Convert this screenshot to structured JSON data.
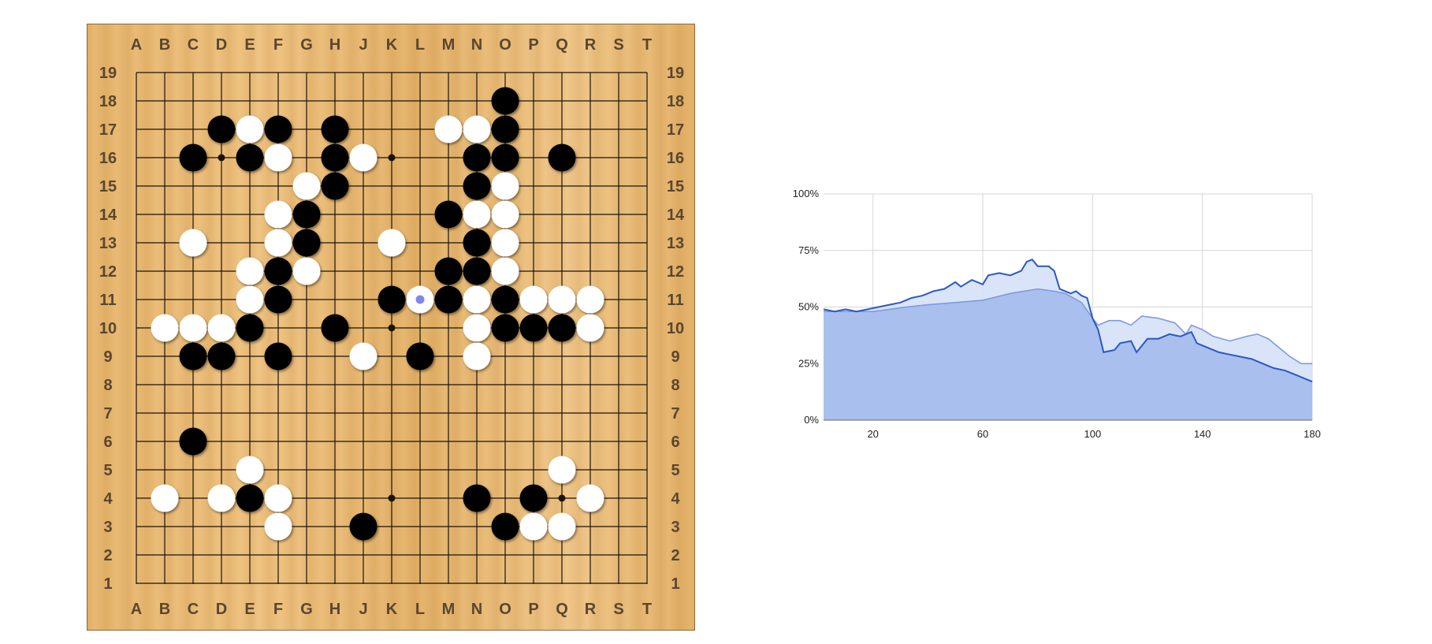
{
  "board": {
    "size": 19,
    "column_labels": [
      "A",
      "B",
      "C",
      "D",
      "E",
      "F",
      "G",
      "H",
      "J",
      "K",
      "L",
      "M",
      "N",
      "O",
      "P",
      "Q",
      "R",
      "S",
      "T"
    ],
    "row_labels": [
      "19",
      "18",
      "17",
      "16",
      "15",
      "14",
      "13",
      "12",
      "11",
      "10",
      "9",
      "8",
      "7",
      "6",
      "5",
      "4",
      "3",
      "2",
      "1"
    ],
    "hoshi": [
      "D16",
      "K16",
      "Q16",
      "D10",
      "K10",
      "Q10",
      "D4",
      "K4",
      "Q4"
    ],
    "black_stones": [
      "O18",
      "D17",
      "F17",
      "H17",
      "O17",
      "C16",
      "E16",
      "H16",
      "N16",
      "O16",
      "Q16",
      "H15",
      "N15",
      "G14",
      "M14",
      "G13",
      "N13",
      "F12",
      "M12",
      "N12",
      "F11",
      "K11",
      "M11",
      "O11",
      "E10",
      "H10",
      "O10",
      "P10",
      "Q10",
      "C9",
      "D9",
      "F9",
      "L9",
      "C6",
      "E4",
      "N4",
      "P4",
      "J3",
      "O3"
    ],
    "white_stones": [
      "E17",
      "M17",
      "N17",
      "F16",
      "J16",
      "G15",
      "O15",
      "F14",
      "N14",
      "O14",
      "C13",
      "F13",
      "K13",
      "O13",
      "E12",
      "G12",
      "O12",
      "E11",
      "N11",
      "P11",
      "Q11",
      "R11",
      "B10",
      "C10",
      "D10",
      "N10",
      "R10",
      "J9",
      "N9",
      "E5",
      "Q5",
      "B4",
      "D4",
      "F4",
      "R4",
      "F3",
      "P3",
      "Q3"
    ],
    "last_move": "L11",
    "colors": {
      "grid": "#1b140c",
      "label": "#5a4630",
      "black": "#050505",
      "white": "#ffffff",
      "last_move_marker": "#7f86ee"
    }
  },
  "chart_data": {
    "type": "area",
    "title": "",
    "xlabel": "",
    "ylabel": "",
    "x_ticks": [
      20,
      60,
      100,
      140,
      180
    ],
    "y_ticks": [
      "0%",
      "25%",
      "50%",
      "75%",
      "100%"
    ],
    "xlim": [
      2,
      180
    ],
    "ylim": [
      0,
      100
    ],
    "grid": true,
    "series": [
      {
        "color": "#2b57c8",
        "points": [
          [
            2,
            49
          ],
          [
            6,
            48
          ],
          [
            10,
            49
          ],
          [
            14,
            48
          ],
          [
            18,
            49
          ],
          [
            22,
            50
          ],
          [
            26,
            51
          ],
          [
            30,
            52
          ],
          [
            34,
            54
          ],
          [
            38,
            55
          ],
          [
            42,
            57
          ],
          [
            46,
            58
          ],
          [
            50,
            61
          ],
          [
            52,
            59
          ],
          [
            56,
            62
          ],
          [
            60,
            60
          ],
          [
            62,
            64
          ],
          [
            66,
            65
          ],
          [
            70,
            64
          ],
          [
            74,
            66
          ],
          [
            76,
            70
          ],
          [
            78,
            71
          ],
          [
            80,
            68
          ],
          [
            84,
            68
          ],
          [
            86,
            66
          ],
          [
            88,
            58
          ],
          [
            92,
            56
          ],
          [
            94,
            57
          ],
          [
            96,
            55
          ],
          [
            98,
            54
          ],
          [
            100,
            45
          ],
          [
            102,
            40
          ],
          [
            104,
            30
          ],
          [
            108,
            31
          ],
          [
            110,
            34
          ],
          [
            114,
            35
          ],
          [
            116,
            30
          ],
          [
            120,
            36
          ],
          [
            124,
            36
          ],
          [
            128,
            38
          ],
          [
            132,
            37
          ],
          [
            136,
            39
          ],
          [
            138,
            34
          ],
          [
            142,
            32
          ],
          [
            146,
            30
          ],
          [
            150,
            29
          ],
          [
            154,
            28
          ],
          [
            158,
            27
          ],
          [
            162,
            25
          ],
          [
            166,
            23
          ],
          [
            170,
            22
          ],
          [
            174,
            20
          ],
          [
            178,
            18
          ],
          [
            180,
            17
          ]
        ]
      },
      {
        "color": "#7d9be0",
        "points": [
          [
            2,
            48
          ],
          [
            10,
            48
          ],
          [
            16,
            48
          ],
          [
            20,
            48
          ],
          [
            26,
            49
          ],
          [
            32,
            50
          ],
          [
            40,
            51
          ],
          [
            50,
            52
          ],
          [
            60,
            53
          ],
          [
            70,
            56
          ],
          [
            80,
            58
          ],
          [
            86,
            57
          ],
          [
            90,
            56
          ],
          [
            96,
            52
          ],
          [
            100,
            45
          ],
          [
            102,
            42
          ],
          [
            106,
            44
          ],
          [
            110,
            44
          ],
          [
            114,
            42
          ],
          [
            118,
            46
          ],
          [
            124,
            45
          ],
          [
            130,
            43
          ],
          [
            134,
            38
          ],
          [
            136,
            42
          ],
          [
            140,
            40
          ],
          [
            144,
            37
          ],
          [
            150,
            35
          ],
          [
            156,
            37
          ],
          [
            160,
            38
          ],
          [
            164,
            36
          ],
          [
            168,
            32
          ],
          [
            172,
            28
          ],
          [
            176,
            25
          ],
          [
            180,
            25
          ]
        ]
      }
    ],
    "fill_colors": {
      "area_main": "#a9bfee",
      "area_light": "#d6e1f7"
    },
    "axis_color": "#b0b0b0",
    "label_color": "#222222"
  }
}
